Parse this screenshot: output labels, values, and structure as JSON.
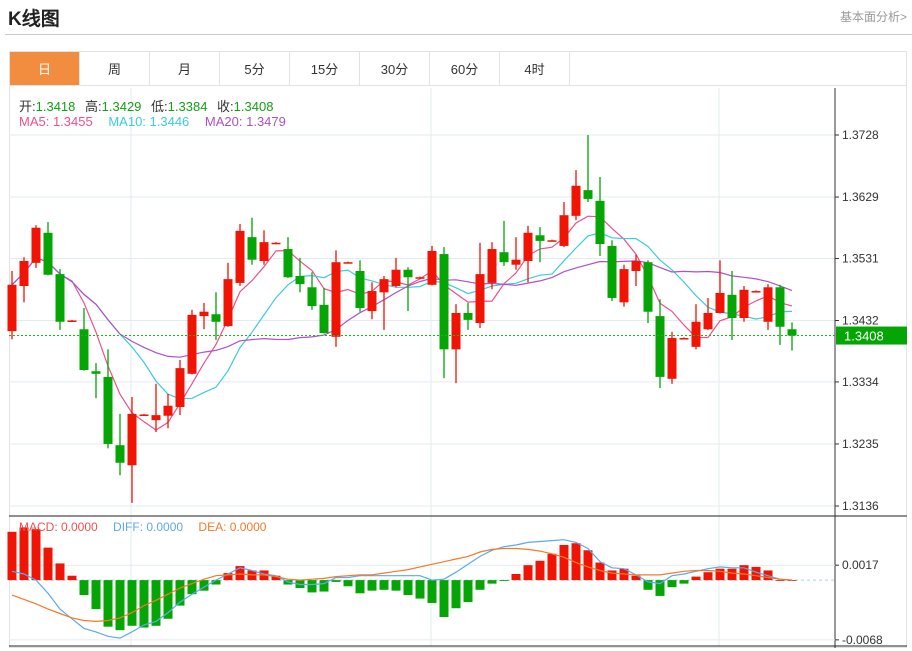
{
  "header": {
    "title": "K线图",
    "fundamental_link": "基本面分析>"
  },
  "tabs": [
    {
      "label": "日",
      "active": true
    },
    {
      "label": "周"
    },
    {
      "label": "月"
    },
    {
      "label": "5分"
    },
    {
      "label": "15分"
    },
    {
      "label": "30分"
    },
    {
      "label": "60分"
    },
    {
      "label": "4时"
    }
  ],
  "ohlc_info": {
    "open_label": "开:",
    "open": "1.3418",
    "high_label": "高:",
    "high": "1.3429",
    "low_label": "低:",
    "low": "1.3384",
    "close_label": "收:",
    "close": "1.3408"
  },
  "ma_info": {
    "ma5": "MA5: 1.3455",
    "ma10": "MA10: 1.3446",
    "ma20": "MA20: 1.3479"
  },
  "macd_info": {
    "macd": "MACD: 0.0000",
    "diff": "DIFF: 0.0000",
    "dea": "DEA: 0.0000"
  },
  "colors": {
    "up": "#f01405",
    "down": "#06a506",
    "ma5": "#f0508c",
    "ma10": "#3ccbe0",
    "ma20": "#b050c8",
    "diff": "#5aaaf0",
    "dea": "#f57a28",
    "accent": "#f28c3f"
  },
  "chart_data": [
    {
      "type": "candlestick",
      "title": "K线图",
      "ylim": [
        1.3136,
        1.3728
      ],
      "y_ticks": [
        "1.3728",
        "1.3629",
        "1.3531",
        "1.3432",
        "1.3334",
        "1.3235",
        "1.3136"
      ],
      "current_price": "1.3408",
      "ohlc": [
        [
          1.3415,
          1.3511,
          1.3402,
          1.3489
        ],
        [
          1.3487,
          1.3533,
          1.3461,
          1.3527
        ],
        [
          1.3524,
          1.3584,
          1.3516,
          1.358
        ],
        [
          1.3572,
          1.3589,
          1.3504,
          1.3505
        ],
        [
          1.3506,
          1.3514,
          1.3417,
          1.343
        ],
        [
          1.3431,
          1.3433,
          1.343,
          1.3432
        ],
        [
          1.3418,
          1.3452,
          1.3352,
          1.3353
        ],
        [
          1.3351,
          1.3364,
          1.3308,
          1.3347
        ],
        [
          1.3342,
          1.3386,
          1.3228,
          1.3235
        ],
        [
          1.3233,
          1.3283,
          1.3185,
          1.3205
        ],
        [
          1.3201,
          1.331,
          1.3141,
          1.3283
        ],
        [
          1.3281,
          1.3283,
          1.328,
          1.3282
        ],
        [
          1.3273,
          1.3331,
          1.3254,
          1.3281
        ],
        [
          1.328,
          1.3315,
          1.326,
          1.3296
        ],
        [
          1.3294,
          1.3369,
          1.3281,
          1.3356
        ],
        [
          1.3347,
          1.3449,
          1.3346,
          1.3441
        ],
        [
          1.3439,
          1.346,
          1.3418,
          1.3446
        ],
        [
          1.3442,
          1.3477,
          1.3401,
          1.343
        ],
        [
          1.3423,
          1.3524,
          1.3422,
          1.3498
        ],
        [
          1.3492,
          1.3586,
          1.3487,
          1.3575
        ],
        [
          1.3565,
          1.3596,
          1.3521,
          1.3529
        ],
        [
          1.3527,
          1.3576,
          1.3521,
          1.3557
        ],
        [
          1.3555,
          1.3557,
          1.3554,
          1.3556
        ],
        [
          1.3546,
          1.3565,
          1.35,
          1.3501
        ],
        [
          1.3503,
          1.3532,
          1.3477,
          1.349
        ],
        [
          1.3485,
          1.3509,
          1.3449,
          1.3455
        ],
        [
          1.3457,
          1.3484,
          1.3411,
          1.3412
        ],
        [
          1.3406,
          1.3544,
          1.339,
          1.3525
        ],
        [
          1.3524,
          1.3526,
          1.3523,
          1.3525
        ],
        [
          1.3511,
          1.3528,
          1.3446,
          1.3452
        ],
        [
          1.3447,
          1.3493,
          1.3434,
          1.3479
        ],
        [
          1.3477,
          1.3503,
          1.3417,
          1.3498
        ],
        [
          1.3487,
          1.3532,
          1.3485,
          1.3513
        ],
        [
          1.3513,
          1.3517,
          1.3447,
          1.3501
        ],
        [
          1.35,
          1.3502,
          1.3499,
          1.3501
        ],
        [
          1.3489,
          1.3551,
          1.3488,
          1.3543
        ],
        [
          1.3538,
          1.3549,
          1.334,
          1.3386
        ],
        [
          1.3386,
          1.3458,
          1.3332,
          1.3444
        ],
        [
          1.3444,
          1.346,
          1.3417,
          1.3433
        ],
        [
          1.3428,
          1.3556,
          1.342,
          1.3506
        ],
        [
          1.3492,
          1.3557,
          1.3482,
          1.3546
        ],
        [
          1.3541,
          1.3591,
          1.3519,
          1.3525
        ],
        [
          1.3521,
          1.3565,
          1.3513,
          1.3529
        ],
        [
          1.3527,
          1.3583,
          1.3493,
          1.3572
        ],
        [
          1.3568,
          1.3581,
          1.3525,
          1.3559
        ],
        [
          1.3559,
          1.3561,
          1.3558,
          1.356
        ],
        [
          1.3551,
          1.3621,
          1.3549,
          1.36
        ],
        [
          1.3599,
          1.3672,
          1.3592,
          1.3647
        ],
        [
          1.364,
          1.3728,
          1.3621,
          1.3626
        ],
        [
          1.3623,
          1.3661,
          1.3535,
          1.3554
        ],
        [
          1.3551,
          1.356,
          1.3463,
          1.3468
        ],
        [
          1.3461,
          1.3521,
          1.3454,
          1.3514
        ],
        [
          1.3511,
          1.3537,
          1.3487,
          1.3527
        ],
        [
          1.3525,
          1.3528,
          1.3428,
          1.3446
        ],
        [
          1.3439,
          1.3466,
          1.3324,
          1.3342
        ],
        [
          1.3339,
          1.3414,
          1.3331,
          1.3404
        ],
        [
          1.3403,
          1.3405,
          1.3402,
          1.3404
        ],
        [
          1.339,
          1.3458,
          1.3386,
          1.343
        ],
        [
          1.3418,
          1.3468,
          1.3417,
          1.3444
        ],
        [
          1.3444,
          1.3528,
          1.3443,
          1.3476
        ],
        [
          1.3473,
          1.3511,
          1.3401,
          1.3436
        ],
        [
          1.3436,
          1.3487,
          1.343,
          1.3481
        ],
        [
          1.3478,
          1.348,
          1.3477,
          1.3479
        ],
        [
          1.343,
          1.349,
          1.3417,
          1.3485
        ],
        [
          1.3485,
          1.3489,
          1.3393,
          1.3422
        ],
        [
          1.3418,
          1.3429,
          1.3384,
          1.3408
        ]
      ],
      "ma_periods": [
        5,
        10,
        20
      ]
    },
    {
      "type": "bar",
      "title": "MACD",
      "ylim": [
        -0.0075,
        0.0073
      ],
      "y_ticks": [
        "0.0017",
        "-0.0068"
      ],
      "macd": [
        0.0055,
        0.006,
        0.0058,
        0.0037,
        0.0019,
        0.0005,
        -0.0017,
        -0.0033,
        -0.0053,
        -0.0057,
        -0.0052,
        -0.0054,
        -0.0052,
        -0.0044,
        -0.0029,
        -0.0016,
        -0.0012,
        -0.0005,
        0.0008,
        0.0016,
        0.0011,
        0.0011,
        0.0005,
        -0.0005,
        -0.0009,
        -0.0014,
        -0.0013,
        -0.0002,
        -0.0007,
        -0.0015,
        -0.0012,
        -0.0011,
        -0.0012,
        -0.0017,
        -0.0021,
        -0.0026,
        -0.0042,
        -0.0032,
        -0.0025,
        -0.0011,
        -0.0004,
        -0.0001,
        0.0007,
        0.0017,
        0.0022,
        0.003,
        0.004,
        0.0042,
        0.0034,
        0.002,
        0.0011,
        0.0013,
        0.0005,
        -0.0011,
        -0.0018,
        -0.0008,
        -0.0004,
        0.0004,
        0.0009,
        0.0013,
        0.0013,
        0.0017,
        0.0015,
        0.0011,
        0.0,
        0.0
      ],
      "diff": [
        0.001,
        0.0007,
        0.0,
        -0.0015,
        -0.0033,
        -0.0044,
        -0.0055,
        -0.0059,
        -0.0064,
        -0.0066,
        -0.0059,
        -0.0051,
        -0.0047,
        -0.0037,
        -0.0025,
        -0.0016,
        -0.0008,
        0.0,
        0.0007,
        0.0014,
        0.0011,
        0.0007,
        0.0005,
        -0.0002,
        -0.0005,
        -0.0005,
        -0.0004,
        0.0003,
        0.0003,
        0.0005,
        0.0005,
        0.0005,
        0.0005,
        0.0005,
        0.0005,
        0.0,
        0.0001,
        0.0009,
        0.0018,
        0.0027,
        0.0034,
        0.0038,
        0.004,
        0.0043,
        0.0044,
        0.0045,
        0.0046,
        0.0043,
        0.0036,
        0.0021,
        0.0014,
        0.0013,
        0.0006,
        -0.0002,
        -0.0004,
        0.0005,
        0.0007,
        0.001,
        0.0013,
        0.0015,
        0.0014,
        0.0014,
        0.0009,
        0.0005,
        0.0001,
        0.0
      ],
      "dea": [
        -0.0017,
        -0.0022,
        -0.0027,
        -0.0033,
        -0.0038,
        -0.0043,
        -0.0046,
        -0.0047,
        -0.0046,
        -0.0043,
        -0.0037,
        -0.0029,
        -0.0023,
        -0.0016,
        -0.0009,
        -0.0004,
        0.0001,
        0.0005,
        0.0006,
        0.0007,
        0.0006,
        0.0006,
        0.0004,
        0.0001,
        0.0,
        0.0001,
        0.0002,
        0.0004,
        0.0005,
        0.0006,
        0.0006,
        0.0008,
        0.001,
        0.0012,
        0.0015,
        0.0018,
        0.0021,
        0.0024,
        0.0027,
        0.0032,
        0.0035,
        0.0036,
        0.0036,
        0.0035,
        0.0033,
        0.003,
        0.0026,
        0.002,
        0.0015,
        0.0011,
        0.0008,
        0.0007,
        0.0006,
        0.0006,
        0.0006,
        0.0008,
        0.001,
        0.0011,
        0.0011,
        0.001,
        0.0008,
        0.0007,
        0.0005,
        0.0003,
        0.0001,
        0.0
      ]
    }
  ]
}
